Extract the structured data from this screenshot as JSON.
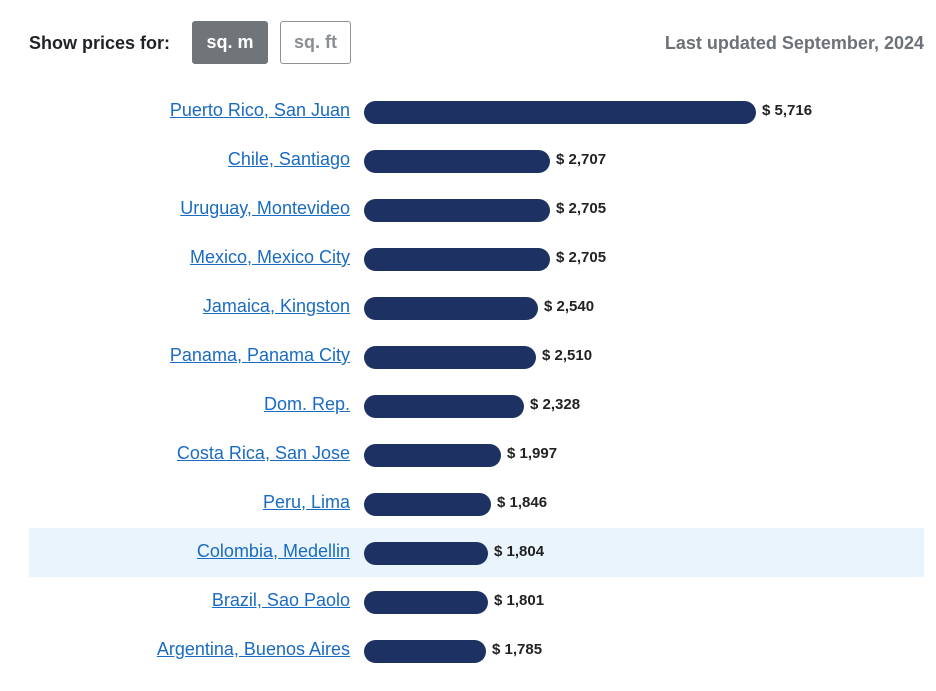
{
  "controls": {
    "show_label": "Show prices for:",
    "unit_active": "sq. m",
    "unit_inactive": "sq. ft",
    "last_updated": "Last updated September, 2024"
  },
  "colors": {
    "bar": "#1e3163",
    "link": "#1a6bc2",
    "highlight_row": "#eaf4fd",
    "active_button": "#6f7579"
  },
  "chart_data": {
    "type": "bar",
    "orientation": "horizontal",
    "categories": [
      "Puerto Rico, San Juan",
      "Chile, Santiago",
      "Uruguay, Montevideo",
      "Mexico, Mexico City",
      "Jamaica, Kingston",
      "Panama, Panama City",
      "Dom. Rep.",
      "Costa Rica, San Jose",
      "Peru, Lima",
      "Colombia, Medellin",
      "Brazil, Sao Paolo",
      "Argentina, Buenos Aires"
    ],
    "values": [
      5716,
      2707,
      2705,
      2705,
      2540,
      2510,
      2328,
      1997,
      1846,
      1804,
      1801,
      1785
    ],
    "value_labels": [
      "$ 5,716",
      "$ 2,707",
      "$ 2,705",
      "$ 2,705",
      "$ 2,540",
      "$ 2,510",
      "$ 2,328",
      "$ 1,997",
      "$ 1,846",
      "$ 1,804",
      "$ 1,801",
      "$ 1,785"
    ],
    "highlighted_category": "Colombia, Medellin",
    "title": "",
    "xlabel": "",
    "ylabel": "",
    "grid": false
  }
}
